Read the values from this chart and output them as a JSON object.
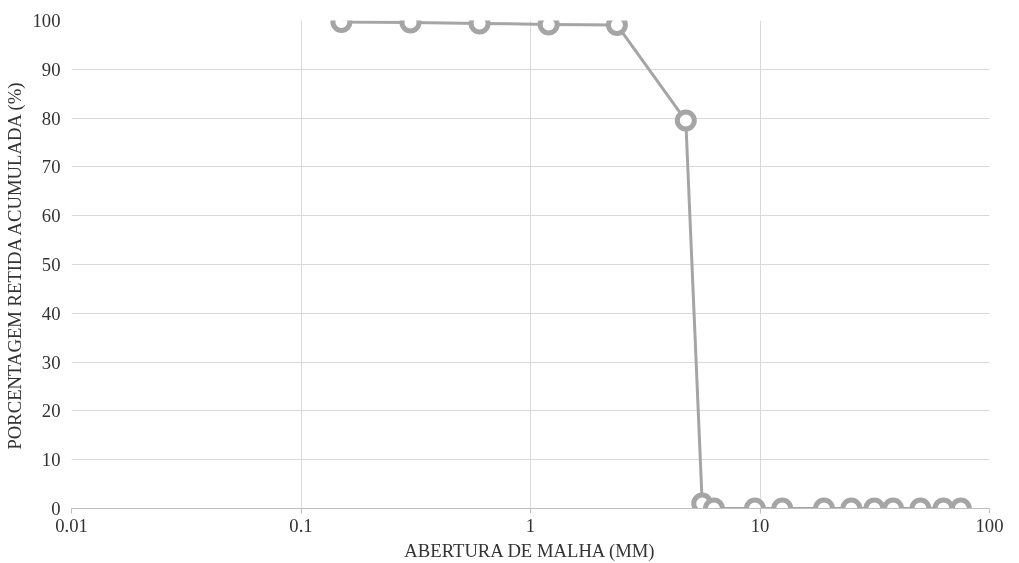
{
  "chart_data": {
    "type": "line",
    "xlabel": "ABERTURA DE MALHA (MM)",
    "ylabel": "PORCENTAGEM RETIDA ACUMULADA (%)",
    "x": [
      0.15,
      0.3,
      0.6,
      1.2,
      2.38,
      4.75,
      5.6,
      6.3,
      9.5,
      12.5,
      19,
      25,
      31.5,
      38,
      50,
      63,
      75
    ],
    "series": [
      {
        "color": "#a5a5a5",
        "values": [
          99.7,
          99.6,
          99.4,
          99.2,
          99.1,
          79.5,
          1,
          0,
          0,
          0,
          0,
          0,
          0,
          0,
          0,
          0,
          0
        ]
      }
    ],
    "log": "x",
    "xlim": [
      0.01,
      100
    ],
    "xticks": [
      0.01,
      0.1,
      1,
      10,
      100
    ],
    "ylim": [
      0,
      100
    ],
    "yticks": [
      0,
      10,
      20,
      30,
      40,
      50,
      60,
      70,
      80,
      90,
      100
    ],
    "grid": true,
    "marker": "circle",
    "line_style": "solid"
  }
}
